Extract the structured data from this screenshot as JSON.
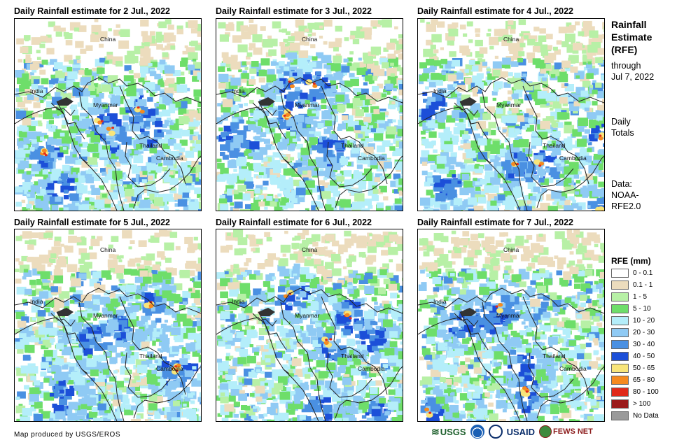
{
  "panels": [
    {
      "title": "Daily Rainfall estimate for 2 Jul., 2022"
    },
    {
      "title": "Daily Rainfall estimate for 3 Jul., 2022"
    },
    {
      "title": "Daily Rainfall estimate for 4 Jul., 2022"
    },
    {
      "title": "Daily Rainfall estimate for 5 Jul., 2022"
    },
    {
      "title": "Daily Rainfall estimate for 6 Jul., 2022"
    },
    {
      "title": "Daily Rainfall estimate for 7 Jul., 2022"
    }
  ],
  "country_labels": {
    "china": "China",
    "india": "India",
    "myanmar": "Myanmar",
    "thailand": "Thailand",
    "cambodia": "Cambodia"
  },
  "side": {
    "title_line1": "Rainfall",
    "title_line2": "Estimate",
    "title_line3": "(RFE)",
    "through_line1": "through",
    "through_line2": "Jul 7, 2022",
    "totals_line1": "Daily",
    "totals_line2": "Totals",
    "data_line1": "Data:",
    "data_line2": "NOAA-",
    "data_line3": "RFE2.0"
  },
  "legend": {
    "title": "RFE (mm)",
    "items": [
      {
        "label": "0 - 0.1",
        "color": "#ffffff"
      },
      {
        "label": "0.1 - 1",
        "color": "#ecdcbd"
      },
      {
        "label": "1 - 5",
        "color": "#b7f0a6"
      },
      {
        "label": "5 - 10",
        "color": "#6ede6a"
      },
      {
        "label": "10 - 20",
        "color": "#b4eefa"
      },
      {
        "label": "20 - 30",
        "color": "#8fcaf4"
      },
      {
        "label": "30 - 40",
        "color": "#4a90e2"
      },
      {
        "label": "40 - 50",
        "color": "#1c4fd8"
      },
      {
        "label": "50 - 65",
        "color": "#f8e57a"
      },
      {
        "label": "65 - 80",
        "color": "#f58a1f"
      },
      {
        "label": "80 - 100",
        "color": "#e02a1a"
      },
      {
        "label": "> 100",
        "color": "#9b1c1c"
      },
      {
        "label": "No Data",
        "color": "#9a9a9a"
      }
    ]
  },
  "credit": "Map produced by USGS/EROS",
  "logos": {
    "usgs": "USGS",
    "usaid": "USAID",
    "fews": "FEWS NET"
  }
}
